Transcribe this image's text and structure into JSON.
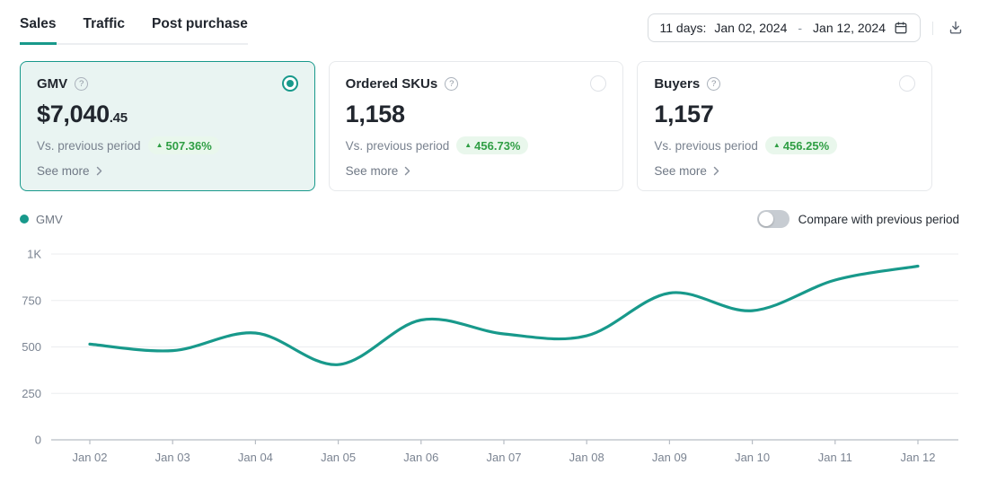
{
  "tabs": [
    {
      "label": "Sales",
      "active": true
    },
    {
      "label": "Traffic",
      "active": false
    },
    {
      "label": "Post purchase",
      "active": false
    }
  ],
  "date_range": {
    "days_label": "11 days:",
    "start": "Jan 02, 2024",
    "separator": "-",
    "end": "Jan 12, 2024",
    "calendar_icon": "calendar-icon"
  },
  "toolbar": {
    "download_icon": "download-icon"
  },
  "cards": [
    {
      "title": "GMV",
      "help_icon": "help-icon",
      "value_main": "$7,040",
      "value_small": ".45",
      "vs_label": "Vs. previous period",
      "change": "507.36%",
      "change_direction": "up",
      "see_more": "See more",
      "selected": true
    },
    {
      "title": "Ordered SKUs",
      "help_icon": "help-icon",
      "value_main": "1,158",
      "vs_label": "Vs. previous period",
      "change": "456.73%",
      "change_direction": "up",
      "see_more": "See more",
      "selected": false
    },
    {
      "title": "Buyers",
      "help_icon": "help-icon",
      "value_main": "1,157",
      "vs_label": "Vs. previous period",
      "change": "456.25%",
      "change_direction": "up",
      "see_more": "See more",
      "selected": false
    }
  ],
  "legend": {
    "series": "GMV"
  },
  "compare_toggle": {
    "label": "Compare with previous period",
    "on": false
  },
  "chart_data": {
    "type": "line",
    "series_name": "GMV",
    "x": [
      "Jan 02",
      "Jan 03",
      "Jan 04",
      "Jan 05",
      "Jan 06",
      "Jan 07",
      "Jan 08",
      "Jan 09",
      "Jan 10",
      "Jan 11",
      "Jan 12"
    ],
    "values": [
      515,
      480,
      575,
      405,
      645,
      570,
      560,
      790,
      695,
      860,
      935
    ],
    "ylim": [
      0,
      1000
    ],
    "y_tick_values": [
      0,
      250,
      500,
      750,
      1000
    ],
    "y_ticks": [
      "0",
      "250",
      "500",
      "750",
      "1K"
    ],
    "xlabel": "",
    "ylabel": "",
    "grid": true,
    "legend_position": "top-left",
    "line_color": "#18998b"
  },
  "colors": {
    "accent_teal": "#18998b",
    "selected_card_bg": "#e9f4f2",
    "positive_green": "#2f9e44",
    "positive_badge_bg": "#e9f7ec",
    "grid_line": "#ebedef",
    "axis_line": "#b8bdc4"
  }
}
